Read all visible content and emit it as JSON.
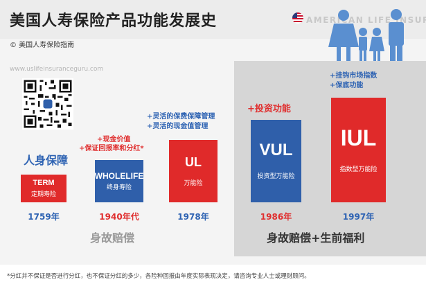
{
  "header": {
    "title": "美国人寿保险产品功能发展史",
    "brand": "AMERICAN LIFE INSURANCE",
    "copyright": "© 美国人寿保险指南",
    "website": "www.uslifeinsuranceguru.com"
  },
  "products": [
    {
      "code": "TERM",
      "name": "定期寿险",
      "year": "1759年",
      "features": [
        "人身保障"
      ],
      "color": "#e02a2a"
    },
    {
      "code": "WHOLELIFE",
      "name": "终身寿险",
      "year": "1940年代",
      "features": [
        "+现金价值",
        "+保证回报率和分红*"
      ],
      "color": "#2f5faa"
    },
    {
      "code": "UL",
      "name": "万能险",
      "year": "1978年",
      "features": [
        "+灵活的保费保障管理",
        "+灵活的现金值管理"
      ],
      "color": "#e02a2a"
    },
    {
      "code": "VUL",
      "name": "投资型万能险",
      "year": "1986年",
      "features": [
        "+投资功能"
      ],
      "color": "#2f5faa"
    },
    {
      "code": "IUL",
      "name": "指数型万能险",
      "year": "1997年",
      "features": [
        "+挂钩市场指数",
        "+保底功能"
      ],
      "color": "#e02a2a"
    }
  ],
  "groups": {
    "left": "身故赔偿",
    "right": "身故赔偿+生前福利"
  },
  "footnote": "*分红并不保证是否进行分红，也不保证分红的多少，各险种回报由年度实际表现决定，请咨询专业人士或理财顾问。",
  "colors": {
    "red": "#e02a2a",
    "blue": "#2f5faa",
    "panel": "#d6d6d6"
  }
}
